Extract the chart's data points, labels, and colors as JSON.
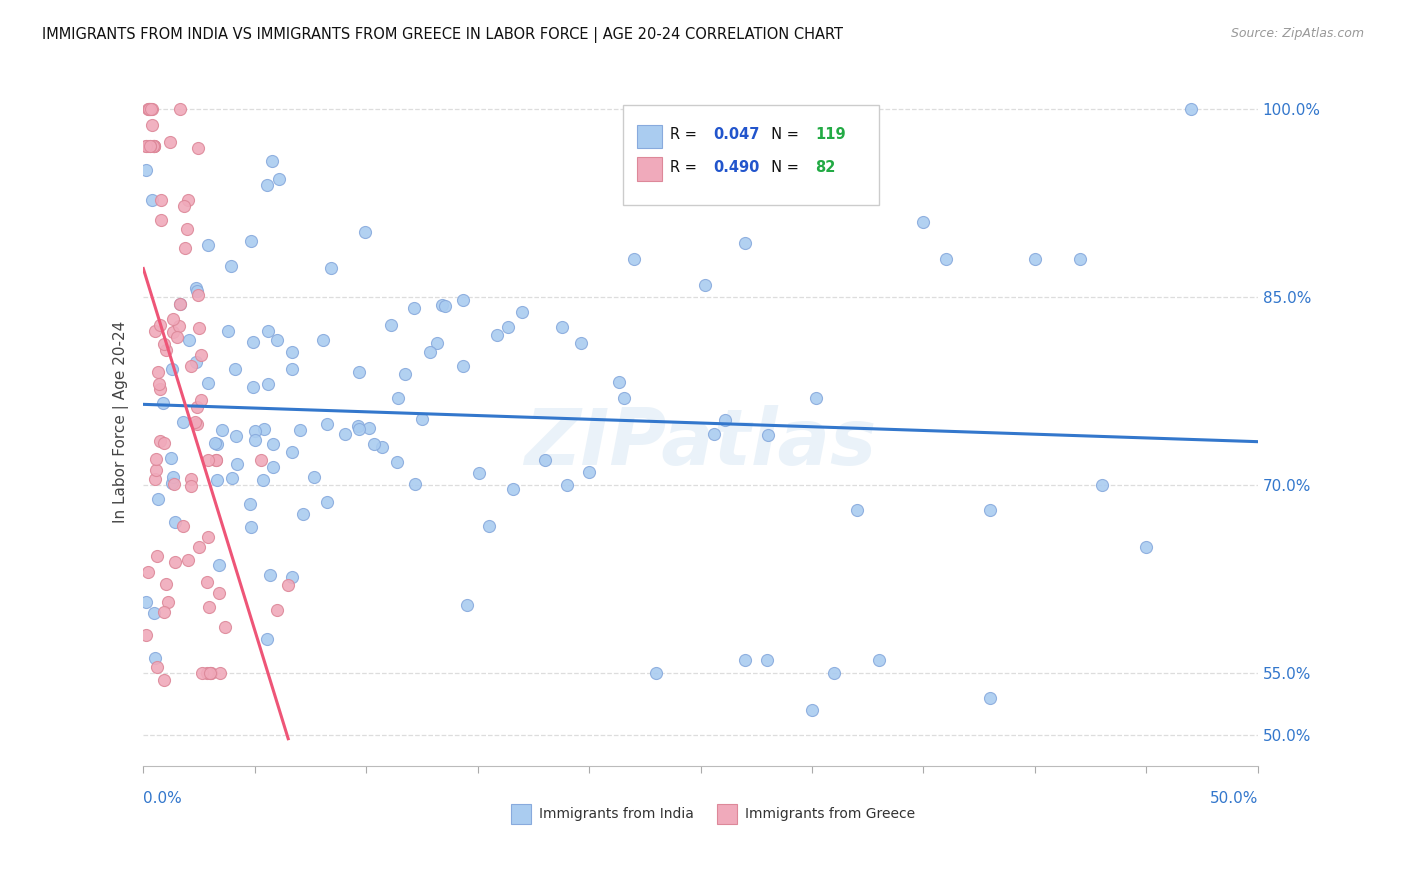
{
  "title": "IMMIGRANTS FROM INDIA VS IMMIGRANTS FROM GREECE IN LABOR FORCE | AGE 20-24 CORRELATION CHART",
  "source": "Source: ZipAtlas.com",
  "ylabel": "In Labor Force | Age 20-24",
  "xmin": 0.0,
  "xmax": 0.5,
  "ymin": 0.475,
  "ymax": 1.025,
  "ytick_vals": [
    0.5,
    0.55,
    0.7,
    0.85,
    1.0
  ],
  "india_color": "#aaccf0",
  "india_edge": "#88aadd",
  "greece_color": "#f0aabb",
  "greece_edge": "#dd8899",
  "india_line_color": "#3377cc",
  "greece_line_color": "#ee5577",
  "india_R": 0.047,
  "india_N": 119,
  "greece_R": 0.49,
  "greece_N": 82,
  "legend_R_color": "#2255cc",
  "legend_N_color": "#22aa44",
  "bg_color": "#ffffff",
  "grid_color": "#dddddd",
  "watermark": "ZIPatlas"
}
